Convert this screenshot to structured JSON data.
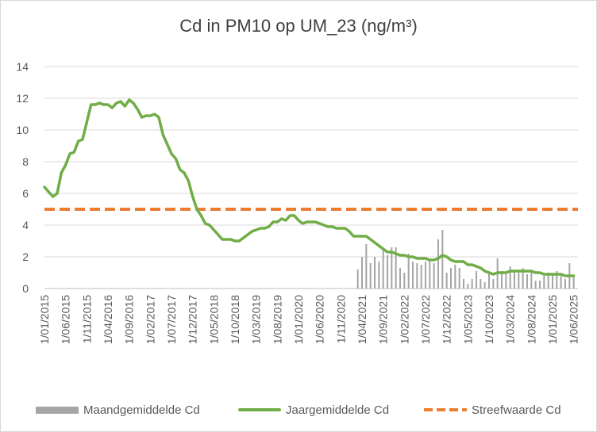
{
  "chart_data": {
    "type": "line",
    "title": "Cd in PM10 op UM_23 (ng/m³)",
    "xlabel": "",
    "ylabel": "",
    "ylim": [
      0,
      14
    ],
    "yticks": [
      0,
      2,
      4,
      6,
      8,
      10,
      12,
      14
    ],
    "grid": true,
    "legend_position": "bottom",
    "x_start": "2015-01",
    "x_end": "2025-07",
    "x_tick_labels": [
      "1/01/2015",
      "1/06/2015",
      "1/11/2015",
      "1/04/2016",
      "1/09/2016",
      "1/02/2017",
      "1/07/2017",
      "1/12/2017",
      "1/05/2018",
      "1/10/2018",
      "1/03/2019",
      "1/08/2019",
      "1/01/2020",
      "1/06/2020",
      "1/11/2020",
      "1/04/2021",
      "1/09/2021",
      "1/02/2022",
      "1/07/2022",
      "1/12/2022",
      "1/05/2023",
      "1/10/2023",
      "1/03/2024",
      "1/08/2024",
      "1/01/2025",
      "1/06/2025"
    ],
    "series": [
      {
        "name": "Maandgemiddelde Cd",
        "kind": "bar",
        "color": "#a5a5a5",
        "points": [
          [
            "2021-03",
            1.2
          ],
          [
            "2021-04",
            2.0
          ],
          [
            "2021-05",
            2.8
          ],
          [
            "2021-06",
            1.6
          ],
          [
            "2021-07",
            2.0
          ],
          [
            "2021-08",
            1.7
          ],
          [
            "2021-09",
            2.4
          ],
          [
            "2021-10",
            2.1
          ],
          [
            "2021-11",
            2.6
          ],
          [
            "2021-12",
            2.6
          ],
          [
            "2021-01",
            0
          ],
          [
            "2022-01",
            1.3
          ],
          [
            "2022-02",
            1.0
          ],
          [
            "2022-03",
            2.2
          ],
          [
            "2022-04",
            1.7
          ],
          [
            "2022-05",
            1.6
          ],
          [
            "2022-06",
            1.5
          ],
          [
            "2022-07",
            1.7
          ],
          [
            "2022-08",
            1.8
          ],
          [
            "2022-09",
            1.6
          ],
          [
            "2022-10",
            3.1
          ],
          [
            "2022-11",
            3.7
          ],
          [
            "2022-12",
            1.0
          ],
          [
            "2023-01",
            1.3
          ],
          [
            "2023-02",
            1.5
          ],
          [
            "2023-03",
            1.3
          ],
          [
            "2023-04",
            0.6
          ],
          [
            "2023-05",
            0.3
          ],
          [
            "2023-06",
            0.6
          ],
          [
            "2023-07",
            1.1
          ],
          [
            "2023-08",
            0.6
          ],
          [
            "2023-09",
            0.4
          ],
          [
            "2023-10",
            1.0
          ],
          [
            "2023-11",
            0.6
          ],
          [
            "2023-12",
            1.9
          ],
          [
            "2024-01",
            1.1
          ],
          [
            "2024-02",
            0.9
          ],
          [
            "2024-03",
            1.4
          ],
          [
            "2024-04",
            1.2
          ],
          [
            "2024-05",
            1.0
          ],
          [
            "2024-06",
            1.3
          ],
          [
            "2024-07",
            0.9
          ],
          [
            "2024-08",
            1.1
          ],
          [
            "2024-09",
            0.5
          ],
          [
            "2024-10",
            0.5
          ],
          [
            "2024-11",
            0.8
          ],
          [
            "2024-12",
            1.0
          ],
          [
            "2025-01",
            0.9
          ],
          [
            "2025-02",
            1.1
          ],
          [
            "2025-03",
            0.8
          ],
          [
            "2025-04",
            0.6
          ],
          [
            "2025-05",
            1.6
          ],
          [
            "2025-06",
            0.7
          ]
        ]
      },
      {
        "name": "Jaargemiddelde Cd",
        "kind": "line",
        "color": "#70ad47",
        "points": [
          [
            "2015-01",
            6.4
          ],
          [
            "2015-02",
            6.1
          ],
          [
            "2015-03",
            5.8
          ],
          [
            "2015-04",
            6.0
          ],
          [
            "2015-05",
            7.3
          ],
          [
            "2015-06",
            7.8
          ],
          [
            "2015-07",
            8.5
          ],
          [
            "2015-08",
            8.6
          ],
          [
            "2015-09",
            9.3
          ],
          [
            "2015-10",
            9.4
          ],
          [
            "2015-11",
            10.5
          ],
          [
            "2015-12",
            11.6
          ],
          [
            "2016-01",
            11.6
          ],
          [
            "2016-02",
            11.7
          ],
          [
            "2016-03",
            11.6
          ],
          [
            "2016-04",
            11.6
          ],
          [
            "2016-05",
            11.4
          ],
          [
            "2016-06",
            11.7
          ],
          [
            "2016-07",
            11.8
          ],
          [
            "2016-08",
            11.5
          ],
          [
            "2016-09",
            11.9
          ],
          [
            "2016-10",
            11.7
          ],
          [
            "2016-11",
            11.3
          ],
          [
            "2016-12",
            10.8
          ],
          [
            "2017-01",
            10.9
          ],
          [
            "2017-02",
            10.9
          ],
          [
            "2017-03",
            11.0
          ],
          [
            "2017-04",
            10.8
          ],
          [
            "2017-05",
            9.7
          ],
          [
            "2017-06",
            9.1
          ],
          [
            "2017-07",
            8.5
          ],
          [
            "2017-08",
            8.2
          ],
          [
            "2017-09",
            7.5
          ],
          [
            "2017-10",
            7.3
          ],
          [
            "2017-11",
            6.8
          ],
          [
            "2017-12",
            5.8
          ],
          [
            "2018-01",
            5.0
          ],
          [
            "2018-02",
            4.6
          ],
          [
            "2018-03",
            4.1
          ],
          [
            "2018-04",
            4.0
          ],
          [
            "2018-05",
            3.7
          ],
          [
            "2018-06",
            3.4
          ],
          [
            "2018-07",
            3.1
          ],
          [
            "2018-08",
            3.1
          ],
          [
            "2018-09",
            3.1
          ],
          [
            "2018-10",
            3.0
          ],
          [
            "2018-11",
            3.0
          ],
          [
            "2018-12",
            3.2
          ],
          [
            "2019-01",
            3.4
          ],
          [
            "2019-02",
            3.6
          ],
          [
            "2019-03",
            3.7
          ],
          [
            "2019-04",
            3.8
          ],
          [
            "2019-05",
            3.8
          ],
          [
            "2019-06",
            3.9
          ],
          [
            "2019-07",
            4.2
          ],
          [
            "2019-08",
            4.2
          ],
          [
            "2019-09",
            4.4
          ],
          [
            "2019-10",
            4.3
          ],
          [
            "2019-11",
            4.6
          ],
          [
            "2019-12",
            4.6
          ],
          [
            "2020-01",
            4.3
          ],
          [
            "2020-02",
            4.1
          ],
          [
            "2020-03",
            4.2
          ],
          [
            "2020-04",
            4.2
          ],
          [
            "2020-05",
            4.2
          ],
          [
            "2020-06",
            4.1
          ],
          [
            "2020-07",
            4.0
          ],
          [
            "2020-08",
            3.9
          ],
          [
            "2020-09",
            3.9
          ],
          [
            "2020-10",
            3.8
          ],
          [
            "2020-11",
            3.8
          ],
          [
            "2020-12",
            3.8
          ],
          [
            "2021-01",
            3.6
          ],
          [
            "2021-02",
            3.3
          ],
          [
            "2021-03",
            3.3
          ],
          [
            "2021-04",
            3.3
          ],
          [
            "2021-05",
            3.3
          ],
          [
            "2021-06",
            3.1
          ],
          [
            "2021-07",
            2.9
          ],
          [
            "2021-08",
            2.7
          ],
          [
            "2021-09",
            2.5
          ],
          [
            "2021-10",
            2.3
          ],
          [
            "2021-11",
            2.3
          ],
          [
            "2021-12",
            2.2
          ],
          [
            "2022-01",
            2.1
          ],
          [
            "2022-02",
            2.1
          ],
          [
            "2022-03",
            2.0
          ],
          [
            "2022-04",
            2.0
          ],
          [
            "2022-05",
            1.9
          ],
          [
            "2022-06",
            1.9
          ],
          [
            "2022-07",
            1.9
          ],
          [
            "2022-08",
            1.8
          ],
          [
            "2022-09",
            1.8
          ],
          [
            "2022-10",
            1.9
          ],
          [
            "2022-11",
            2.1
          ],
          [
            "2022-12",
            2.0
          ],
          [
            "2023-01",
            1.8
          ],
          [
            "2023-02",
            1.7
          ],
          [
            "2023-03",
            1.7
          ],
          [
            "2023-04",
            1.7
          ],
          [
            "2023-05",
            1.5
          ],
          [
            "2023-06",
            1.5
          ],
          [
            "2023-07",
            1.4
          ],
          [
            "2023-08",
            1.3
          ],
          [
            "2023-09",
            1.1
          ],
          [
            "2023-10",
            1.0
          ],
          [
            "2023-11",
            0.9
          ],
          [
            "2023-12",
            1.0
          ],
          [
            "2024-01",
            1.0
          ],
          [
            "2024-02",
            1.0
          ],
          [
            "2024-03",
            1.1
          ],
          [
            "2024-04",
            1.1
          ],
          [
            "2024-05",
            1.1
          ],
          [
            "2024-06",
            1.1
          ],
          [
            "2024-07",
            1.1
          ],
          [
            "2024-08",
            1.1
          ],
          [
            "2024-09",
            1.0
          ],
          [
            "2024-10",
            1.0
          ],
          [
            "2024-11",
            0.9
          ],
          [
            "2024-12",
            0.9
          ],
          [
            "2025-01",
            0.9
          ],
          [
            "2025-02",
            0.9
          ],
          [
            "2025-03",
            0.9
          ],
          [
            "2025-04",
            0.8
          ],
          [
            "2025-05",
            0.8
          ],
          [
            "2025-06",
            0.8
          ]
        ]
      },
      {
        "name": "Streefwaarde Cd",
        "kind": "dashed-line",
        "color": "#ed7d31",
        "value": 5
      }
    ]
  }
}
